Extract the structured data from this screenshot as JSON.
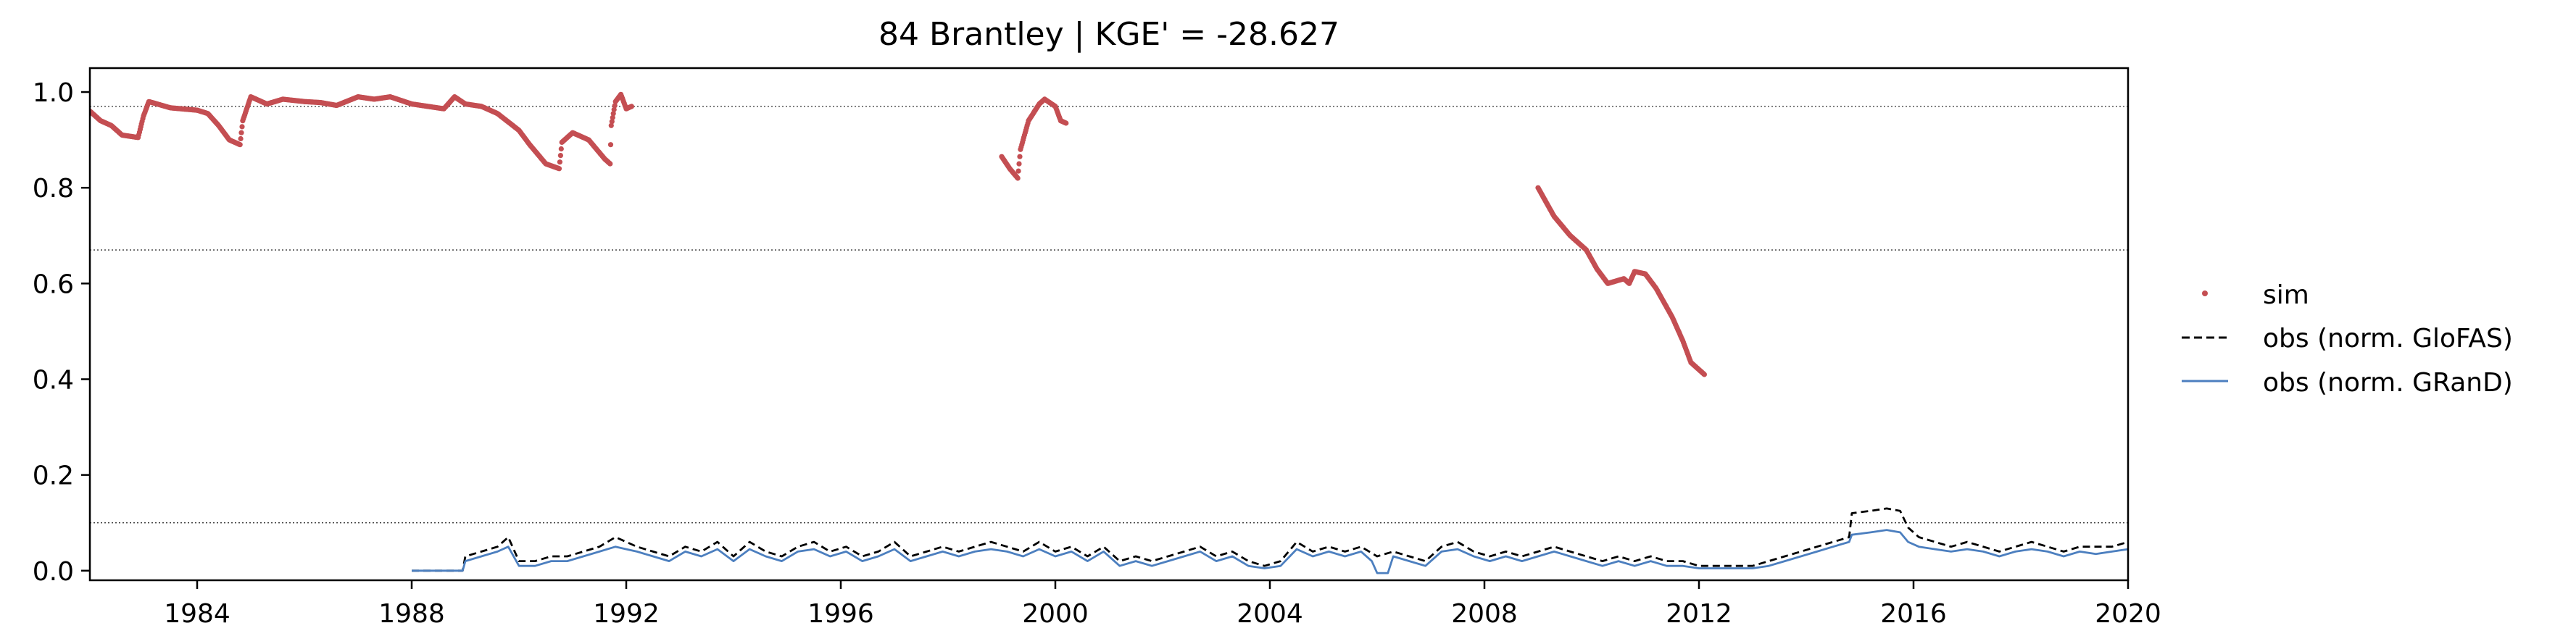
{
  "chart_data": {
    "type": "line",
    "title": "84  Brantley | KGE' = -28.627",
    "xlabel": "",
    "ylabel": "",
    "xlim": [
      1982.0,
      2020.0
    ],
    "ylim": [
      -0.02,
      1.05
    ],
    "x_ticks": [
      1984,
      1988,
      1992,
      1996,
      2000,
      2004,
      2008,
      2012,
      2016,
      2020
    ],
    "x_tick_labels": [
      "1984",
      "1988",
      "1992",
      "1996",
      "2000",
      "2004",
      "2008",
      "2012",
      "2016",
      "2020"
    ],
    "y_ticks": [
      0.0,
      0.2,
      0.4,
      0.6,
      0.8,
      1.0
    ],
    "y_tick_labels": [
      "0.0",
      "0.2",
      "0.4",
      "0.6",
      "0.8",
      "1.0"
    ],
    "hlines": [
      0.97,
      0.67,
      0.1
    ],
    "grid": false,
    "legend_position": "right, outside plot",
    "series": [
      {
        "name": "sim",
        "style": "points",
        "color": "#c44e52",
        "segments": [
          [
            [
              1982.0,
              0.96
            ],
            [
              1982.2,
              0.94
            ],
            [
              1982.4,
              0.93
            ],
            [
              1982.6,
              0.91
            ],
            [
              1982.9,
              0.905
            ],
            [
              1983.0,
              0.95
            ],
            [
              1983.1,
              0.98
            ],
            [
              1983.5,
              0.967
            ],
            [
              1984.0,
              0.962
            ],
            [
              1984.2,
              0.955
            ],
            [
              1984.4,
              0.93
            ],
            [
              1984.6,
              0.9
            ],
            [
              1984.8,
              0.89
            ],
            [
              1984.85,
              0.94
            ],
            [
              1985.0,
              0.99
            ],
            [
              1985.3,
              0.975
            ],
            [
              1985.6,
              0.985
            ],
            [
              1986.0,
              0.98
            ],
            [
              1986.3,
              0.978
            ],
            [
              1986.6,
              0.972
            ],
            [
              1987.0,
              0.99
            ],
            [
              1987.3,
              0.985
            ],
            [
              1987.6,
              0.99
            ],
            [
              1988.0,
              0.975
            ],
            [
              1988.3,
              0.97
            ],
            [
              1988.6,
              0.965
            ],
            [
              1988.8,
              0.99
            ],
            [
              1989.0,
              0.975
            ],
            [
              1989.3,
              0.97
            ],
            [
              1989.6,
              0.955
            ],
            [
              1990.0,
              0.92
            ],
            [
              1990.2,
              0.89
            ],
            [
              1990.5,
              0.85
            ],
            [
              1990.75,
              0.84
            ],
            [
              1990.8,
              0.895
            ],
            [
              1991.0,
              0.915
            ],
            [
              1991.3,
              0.9
            ],
            [
              1991.6,
              0.86
            ],
            [
              1991.7,
              0.85
            ],
            [
              1991.72,
              0.93
            ],
            [
              1991.8,
              0.98
            ],
            [
              1991.9,
              0.995
            ],
            [
              1992.0,
              0.965
            ],
            [
              1992.1,
              0.97
            ]
          ],
          [
            [
              1999.0,
              0.865
            ],
            [
              1999.15,
              0.84
            ],
            [
              1999.3,
              0.82
            ],
            [
              1999.35,
              0.88
            ],
            [
              1999.5,
              0.94
            ],
            [
              1999.7,
              0.975
            ],
            [
              1999.8,
              0.985
            ],
            [
              2000.0,
              0.97
            ],
            [
              2000.1,
              0.94
            ],
            [
              2000.2,
              0.935
            ]
          ],
          [
            [
              2009.0,
              0.8
            ],
            [
              2009.3,
              0.74
            ],
            [
              2009.6,
              0.7
            ],
            [
              2009.9,
              0.67
            ],
            [
              2010.1,
              0.63
            ],
            [
              2010.3,
              0.6
            ],
            [
              2010.6,
              0.61
            ],
            [
              2010.7,
              0.6
            ],
            [
              2010.8,
              0.625
            ],
            [
              2011.0,
              0.62
            ],
            [
              2011.2,
              0.59
            ],
            [
              2011.5,
              0.53
            ],
            [
              2011.7,
              0.48
            ],
            [
              2011.85,
              0.435
            ],
            [
              2012.1,
              0.41
            ]
          ]
        ]
      },
      {
        "name": "obs (norm. GloFAS)",
        "style": "dashed",
        "color": "#000000",
        "points": [
          [
            1988.0,
            0.0
          ],
          [
            1988.95,
            0.0
          ],
          [
            1989.0,
            0.03
          ],
          [
            1989.3,
            0.04
          ],
          [
            1989.6,
            0.05
          ],
          [
            1989.8,
            0.07
          ],
          [
            1990.0,
            0.02
          ],
          [
            1990.3,
            0.02
          ],
          [
            1990.6,
            0.03
          ],
          [
            1990.9,
            0.03
          ],
          [
            1991.2,
            0.04
          ],
          [
            1991.5,
            0.05
          ],
          [
            1991.8,
            0.07
          ],
          [
            1992.0,
            0.06
          ],
          [
            1992.2,
            0.05
          ],
          [
            1992.5,
            0.04
          ],
          [
            1992.8,
            0.03
          ],
          [
            1993.1,
            0.05
          ],
          [
            1993.4,
            0.04
          ],
          [
            1993.7,
            0.06
          ],
          [
            1994.0,
            0.03
          ],
          [
            1994.3,
            0.06
          ],
          [
            1994.6,
            0.04
          ],
          [
            1994.9,
            0.03
          ],
          [
            1995.2,
            0.05
          ],
          [
            1995.5,
            0.06
          ],
          [
            1995.8,
            0.04
          ],
          [
            1996.1,
            0.05
          ],
          [
            1996.4,
            0.03
          ],
          [
            1996.7,
            0.04
          ],
          [
            1997.0,
            0.06
          ],
          [
            1997.3,
            0.03
          ],
          [
            1997.6,
            0.04
          ],
          [
            1997.9,
            0.05
          ],
          [
            1998.2,
            0.04
          ],
          [
            1998.5,
            0.05
          ],
          [
            1998.8,
            0.06
          ],
          [
            1999.1,
            0.05
          ],
          [
            1999.4,
            0.04
          ],
          [
            1999.7,
            0.06
          ],
          [
            2000.0,
            0.04
          ],
          [
            2000.3,
            0.05
          ],
          [
            2000.6,
            0.03
          ],
          [
            2000.9,
            0.05
          ],
          [
            2001.2,
            0.02
          ],
          [
            2001.5,
            0.03
          ],
          [
            2001.8,
            0.02
          ],
          [
            2002.1,
            0.03
          ],
          [
            2002.4,
            0.04
          ],
          [
            2002.7,
            0.05
          ],
          [
            2003.0,
            0.03
          ],
          [
            2003.3,
            0.04
          ],
          [
            2003.6,
            0.02
          ],
          [
            2003.9,
            0.01
          ],
          [
            2004.2,
            0.02
          ],
          [
            2004.5,
            0.06
          ],
          [
            2004.8,
            0.04
          ],
          [
            2005.1,
            0.05
          ],
          [
            2005.4,
            0.04
          ],
          [
            2005.7,
            0.05
          ],
          [
            2006.0,
            0.03
          ],
          [
            2006.3,
            0.04
          ],
          [
            2006.6,
            0.03
          ],
          [
            2006.9,
            0.02
          ],
          [
            2007.2,
            0.05
          ],
          [
            2007.5,
            0.06
          ],
          [
            2007.8,
            0.04
          ],
          [
            2008.1,
            0.03
          ],
          [
            2008.4,
            0.04
          ],
          [
            2008.7,
            0.03
          ],
          [
            2009.0,
            0.04
          ],
          [
            2009.3,
            0.05
          ],
          [
            2009.6,
            0.04
          ],
          [
            2009.9,
            0.03
          ],
          [
            2010.2,
            0.02
          ],
          [
            2010.5,
            0.03
          ],
          [
            2010.8,
            0.02
          ],
          [
            2011.1,
            0.03
          ],
          [
            2011.4,
            0.02
          ],
          [
            2011.7,
            0.02
          ],
          [
            2012.0,
            0.01
          ],
          [
            2012.5,
            0.01
          ],
          [
            2013.0,
            0.01
          ],
          [
            2013.3,
            0.02
          ],
          [
            2013.6,
            0.03
          ],
          [
            2013.9,
            0.04
          ],
          [
            2014.2,
            0.05
          ],
          [
            2014.5,
            0.06
          ],
          [
            2014.8,
            0.07
          ],
          [
            2014.85,
            0.12
          ],
          [
            2015.2,
            0.125
          ],
          [
            2015.5,
            0.13
          ],
          [
            2015.75,
            0.125
          ],
          [
            2015.9,
            0.09
          ],
          [
            2016.1,
            0.07
          ],
          [
            2016.4,
            0.06
          ],
          [
            2016.7,
            0.05
          ],
          [
            2017.0,
            0.06
          ],
          [
            2017.3,
            0.05
          ],
          [
            2017.6,
            0.04
          ],
          [
            2017.9,
            0.05
          ],
          [
            2018.2,
            0.06
          ],
          [
            2018.5,
            0.05
          ],
          [
            2018.8,
            0.04
          ],
          [
            2019.1,
            0.05
          ],
          [
            2019.4,
            0.05
          ],
          [
            2019.7,
            0.05
          ],
          [
            2020.0,
            0.06
          ]
        ]
      },
      {
        "name": "obs (norm. GRanD)",
        "style": "solid",
        "color": "#4c7fbf",
        "points": [
          [
            1988.0,
            0.0
          ],
          [
            1988.95,
            0.0
          ],
          [
            1989.0,
            0.02
          ],
          [
            1989.3,
            0.03
          ],
          [
            1989.6,
            0.04
          ],
          [
            1989.8,
            0.05
          ],
          [
            1990.0,
            0.01
          ],
          [
            1990.3,
            0.01
          ],
          [
            1990.6,
            0.02
          ],
          [
            1990.9,
            0.02
          ],
          [
            1991.2,
            0.03
          ],
          [
            1991.5,
            0.04
          ],
          [
            1991.8,
            0.05
          ],
          [
            1992.0,
            0.045
          ],
          [
            1992.2,
            0.04
          ],
          [
            1992.5,
            0.03
          ],
          [
            1992.8,
            0.02
          ],
          [
            1993.1,
            0.04
          ],
          [
            1993.4,
            0.03
          ],
          [
            1993.7,
            0.045
          ],
          [
            1994.0,
            0.02
          ],
          [
            1994.3,
            0.045
          ],
          [
            1994.6,
            0.03
          ],
          [
            1994.9,
            0.02
          ],
          [
            1995.2,
            0.04
          ],
          [
            1995.5,
            0.045
          ],
          [
            1995.8,
            0.03
          ],
          [
            1996.1,
            0.04
          ],
          [
            1996.4,
            0.02
          ],
          [
            1996.7,
            0.03
          ],
          [
            1997.0,
            0.045
          ],
          [
            1997.3,
            0.02
          ],
          [
            1997.6,
            0.03
          ],
          [
            1997.9,
            0.04
          ],
          [
            1998.2,
            0.03
          ],
          [
            1998.5,
            0.04
          ],
          [
            1998.8,
            0.045
          ],
          [
            1999.1,
            0.04
          ],
          [
            1999.4,
            0.03
          ],
          [
            1999.7,
            0.045
          ],
          [
            2000.0,
            0.03
          ],
          [
            2000.3,
            0.04
          ],
          [
            2000.6,
            0.02
          ],
          [
            2000.9,
            0.04
          ],
          [
            2001.2,
            0.01
          ],
          [
            2001.5,
            0.02
          ],
          [
            2001.8,
            0.01
          ],
          [
            2002.1,
            0.02
          ],
          [
            2002.4,
            0.03
          ],
          [
            2002.7,
            0.04
          ],
          [
            2003.0,
            0.02
          ],
          [
            2003.3,
            0.03
          ],
          [
            2003.6,
            0.01
          ],
          [
            2003.9,
            0.005
          ],
          [
            2004.2,
            0.01
          ],
          [
            2004.5,
            0.045
          ],
          [
            2004.8,
            0.03
          ],
          [
            2005.1,
            0.04
          ],
          [
            2005.4,
            0.03
          ],
          [
            2005.7,
            0.04
          ],
          [
            2005.9,
            0.02
          ],
          [
            2006.0,
            -0.005
          ],
          [
            2006.2,
            -0.005
          ],
          [
            2006.3,
            0.03
          ],
          [
            2006.6,
            0.02
          ],
          [
            2006.9,
            0.01
          ],
          [
            2007.2,
            0.04
          ],
          [
            2007.5,
            0.045
          ],
          [
            2007.8,
            0.03
          ],
          [
            2008.1,
            0.02
          ],
          [
            2008.4,
            0.03
          ],
          [
            2008.7,
            0.02
          ],
          [
            2009.0,
            0.03
          ],
          [
            2009.3,
            0.04
          ],
          [
            2009.6,
            0.03
          ],
          [
            2009.9,
            0.02
          ],
          [
            2010.2,
            0.01
          ],
          [
            2010.5,
            0.02
          ],
          [
            2010.8,
            0.01
          ],
          [
            2011.1,
            0.02
          ],
          [
            2011.4,
            0.01
          ],
          [
            2011.7,
            0.01
          ],
          [
            2012.0,
            0.005
          ],
          [
            2012.5,
            0.005
          ],
          [
            2013.0,
            0.005
          ],
          [
            2013.3,
            0.01
          ],
          [
            2013.6,
            0.02
          ],
          [
            2013.9,
            0.03
          ],
          [
            2014.2,
            0.04
          ],
          [
            2014.5,
            0.05
          ],
          [
            2014.8,
            0.06
          ],
          [
            2014.85,
            0.075
          ],
          [
            2015.2,
            0.08
          ],
          [
            2015.5,
            0.085
          ],
          [
            2015.75,
            0.08
          ],
          [
            2015.9,
            0.06
          ],
          [
            2016.1,
            0.05
          ],
          [
            2016.4,
            0.045
          ],
          [
            2016.7,
            0.04
          ],
          [
            2017.0,
            0.045
          ],
          [
            2017.3,
            0.04
          ],
          [
            2017.6,
            0.03
          ],
          [
            2017.9,
            0.04
          ],
          [
            2018.2,
            0.045
          ],
          [
            2018.5,
            0.04
          ],
          [
            2018.8,
            0.03
          ],
          [
            2019.1,
            0.04
          ],
          [
            2019.4,
            0.035
          ],
          [
            2019.7,
            0.04
          ],
          [
            2020.0,
            0.045
          ]
        ]
      }
    ]
  }
}
